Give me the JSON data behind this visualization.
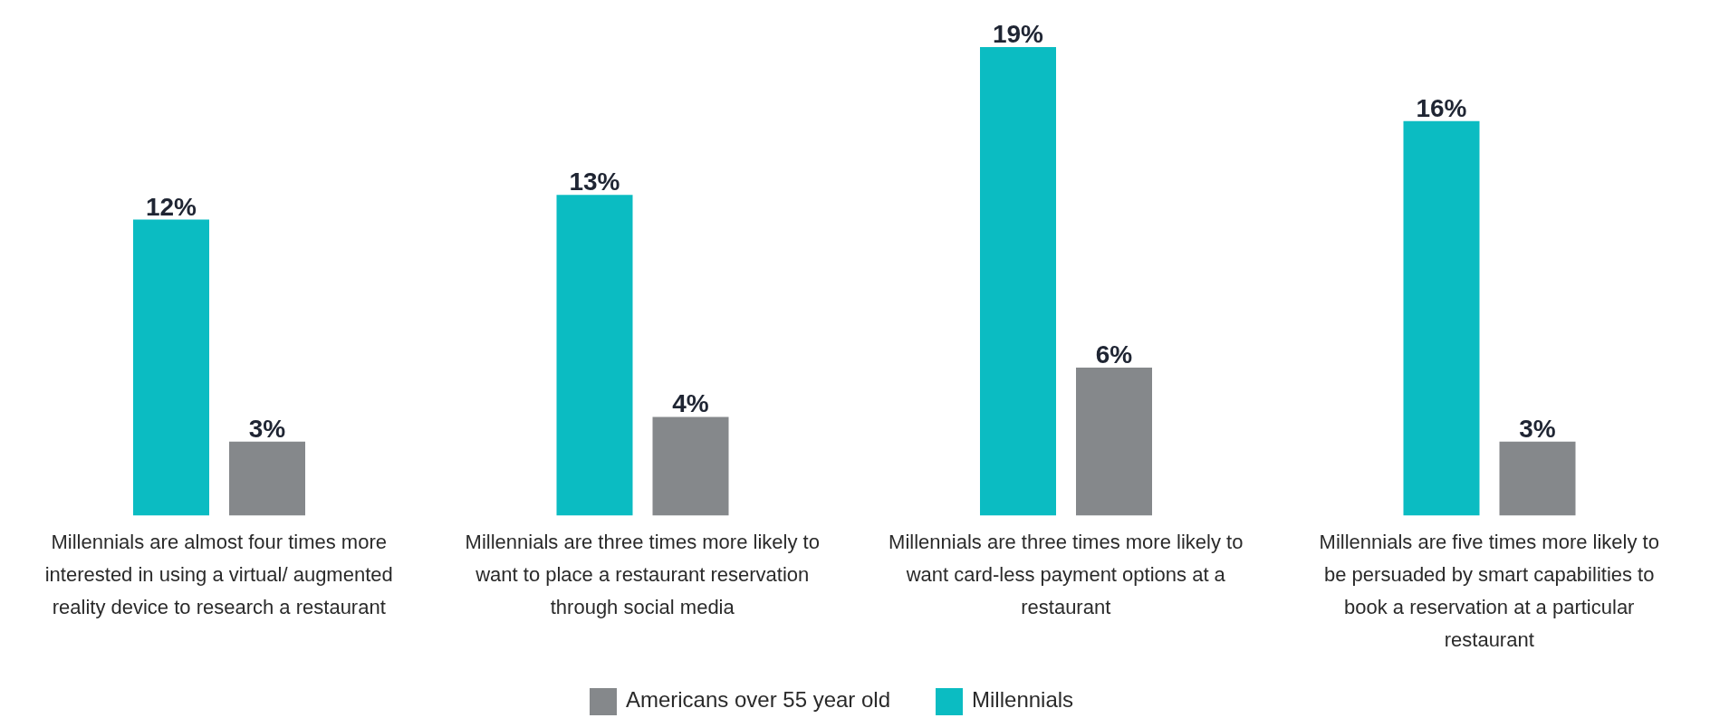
{
  "chart_data": {
    "type": "bar",
    "categories": [
      "Millennials are almost four times more interested in using a virtual/ augmented reality device to research a restaurant",
      "Millennials are three times more likely to want to place a restaurant reservation through social media",
      "Millennials are three times more likely to want card-less payment options at a restaurant",
      "Millennials are five times more likely to be persuaded by smart capabilities to book a reservation at a particular restaurant"
    ],
    "series": [
      {
        "name": "Millennials",
        "color": "#0bbcc2",
        "values": [
          12,
          13,
          19,
          16
        ],
        "value_labels": [
          "12%",
          "13%",
          "19%",
          "16%"
        ]
      },
      {
        "name": "Americans over 55 year old",
        "color": "#85888b",
        "values": [
          3,
          4,
          6,
          3
        ],
        "value_labels": [
          "3%",
          "4%",
          "6%",
          "3%"
        ]
      }
    ],
    "legend": "bottom"
  }
}
